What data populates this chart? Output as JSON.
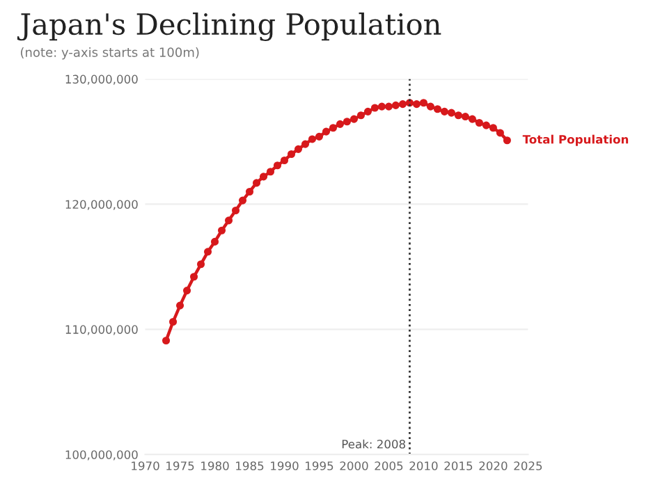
{
  "chart_data": {
    "type": "line",
    "title": "Japan's Declining Population",
    "subtitle": "(note: y-axis starts at 100m)",
    "x": [
      1973,
      1974,
      1975,
      1976,
      1977,
      1978,
      1979,
      1980,
      1981,
      1982,
      1983,
      1984,
      1985,
      1986,
      1987,
      1988,
      1989,
      1990,
      1991,
      1992,
      1993,
      1994,
      1995,
      1996,
      1997,
      1998,
      1999,
      2000,
      2001,
      2002,
      2003,
      2004,
      2005,
      2006,
      2007,
      2008,
      2009,
      2010,
      2011,
      2012,
      2013,
      2014,
      2015,
      2016,
      2017,
      2018,
      2019,
      2020,
      2021,
      2022
    ],
    "series": [
      {
        "name": "Total Population",
        "color": "#d7191c",
        "values": [
          109100000,
          110600000,
          111900000,
          113100000,
          114200000,
          115200000,
          116200000,
          117000000,
          117900000,
          118700000,
          119500000,
          120300000,
          121000000,
          121700000,
          122200000,
          122600000,
          123100000,
          123500000,
          124000000,
          124400000,
          124800000,
          125200000,
          125400000,
          125800000,
          126100000,
          126400000,
          126600000,
          126800000,
          127100000,
          127400000,
          127700000,
          127800000,
          127800000,
          127900000,
          128000000,
          128100000,
          128000000,
          128100000,
          127800000,
          127600000,
          127400000,
          127300000,
          127100000,
          127000000,
          126800000,
          126500000,
          126300000,
          126100000,
          125700000,
          125100000
        ]
      }
    ],
    "xlim": [
      1970,
      2025
    ],
    "xticks": [
      1970,
      1975,
      1980,
      1985,
      1990,
      1995,
      2000,
      2005,
      2010,
      2015,
      2020,
      2025
    ],
    "ylim": [
      100000000,
      130000000
    ],
    "yticks": [
      {
        "value": 100000000,
        "label": "100,000,000"
      },
      {
        "value": 110000000,
        "label": "110,000,000"
      },
      {
        "value": 120000000,
        "label": "120,000,000"
      },
      {
        "value": 130000000,
        "label": "130,000,000"
      }
    ],
    "ref_lines": [
      {
        "axis": "x",
        "value": 2008,
        "label": "Peak: 2008",
        "color": "#333333",
        "line_style": "dotted"
      }
    ],
    "grid": "y",
    "marker": "circle",
    "line_style": "solid"
  }
}
